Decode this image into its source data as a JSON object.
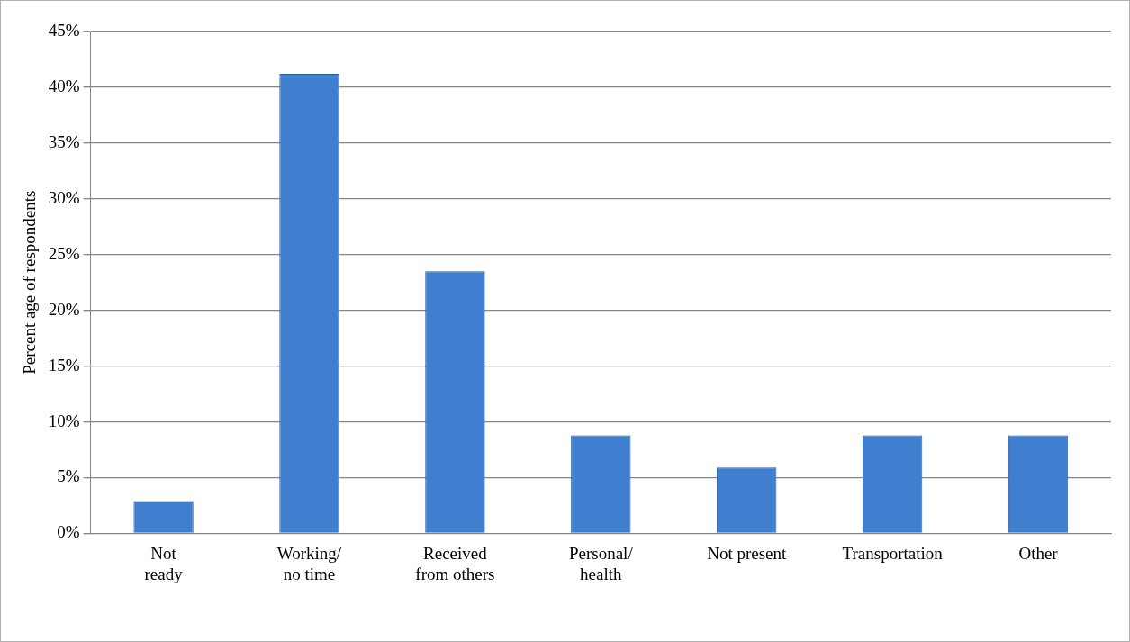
{
  "chart_data": {
    "type": "bar",
    "ylabel": "Percent age of respondents",
    "categories": [
      "Not\nready",
      "Working/\nno time",
      "Received\nfrom others",
      "Personal/\nhealth",
      "Not present",
      "Transportation",
      "Other"
    ],
    "values": [
      2.9,
      41.2,
      23.5,
      8.8,
      5.9,
      8.8,
      8.8
    ],
    "color": "#3f7fcf",
    "ylim": [
      0,
      45
    ],
    "yticks": [
      {
        "value": 0,
        "label": "0%"
      },
      {
        "value": 5,
        "label": "5%"
      },
      {
        "value": 10,
        "label": "10%"
      },
      {
        "value": 15,
        "label": "15%"
      },
      {
        "value": 20,
        "label": "20%"
      },
      {
        "value": 25,
        "label": "25%"
      },
      {
        "value": 30,
        "label": "30%"
      },
      {
        "value": 35,
        "label": "35%"
      },
      {
        "value": 40,
        "label": "40%"
      },
      {
        "value": 45,
        "label": "45%"
      }
    ],
    "grid": "y",
    "legend": false
  }
}
